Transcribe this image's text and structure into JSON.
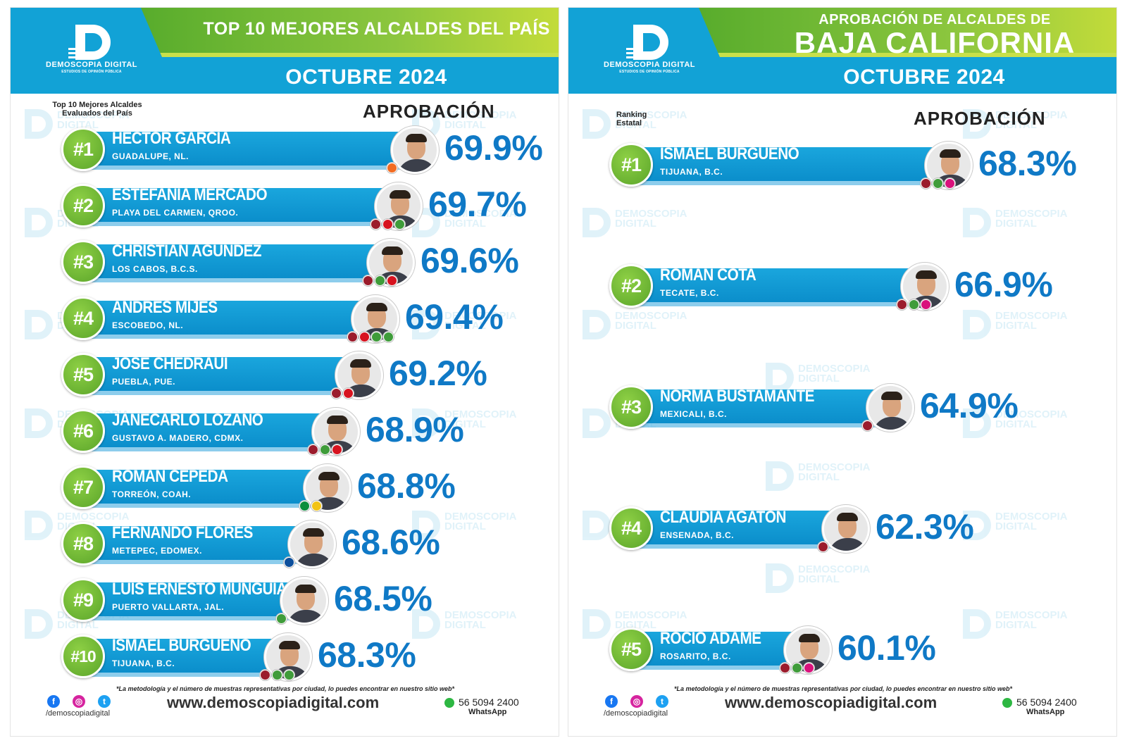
{
  "brand": {
    "logo_name": "DEMOSCOPIA DIGITAL",
    "logo_sub": "ESTUDIOS DE OPINIÓN PÚBLICA",
    "colors": {
      "blue": "#12a2d6",
      "green": "#5ba52a",
      "pct": "#0f79c6",
      "morena": "#9b1c2c",
      "pt": "#d7131f",
      "pvem": "#3f9c3a",
      "pan": "#0d4f9c",
      "pri": "#0b8e3c",
      "mc": "#f26b21"
    }
  },
  "left": {
    "title": "TOP 10 MEJORES ALCALDES DEL PAÍS",
    "date": "OCTUBRE 2024",
    "sub_label": "Top 10 Mejores Alcaldes Evaluados del País",
    "column_label": "APROBACIÓN",
    "rows": [
      {
        "rank": "#1",
        "name": "HÉCTOR GARCÍA",
        "place": "GUADALUPE, NL.",
        "pct": "69.9%",
        "parties": [
          "mc"
        ]
      },
      {
        "rank": "#2",
        "name": "ESTEFANÍA MERCADO",
        "place": "PLAYA DEL CARMEN, QROO.",
        "pct": "69.7%",
        "parties": [
          "morena",
          "pt",
          "pvem"
        ]
      },
      {
        "rank": "#3",
        "name": "CHRISTIAN AGÚNDEZ",
        "place": "LOS CABOS, B.C.S.",
        "pct": "69.6%",
        "parties": [
          "morena",
          "pvem",
          "pt"
        ]
      },
      {
        "rank": "#4",
        "name": "ANDRÉS MIJES",
        "place": "ESCOBEDO, NL.",
        "pct": "69.4%",
        "parties": [
          "morena",
          "pt",
          "pvem",
          "pvem"
        ]
      },
      {
        "rank": "#5",
        "name": "JOSÉ CHEDRAUI",
        "place": "PUEBLA, PUE.",
        "pct": "69.2%",
        "parties": [
          "morena",
          "pt"
        ]
      },
      {
        "rank": "#6",
        "name": "JANECARLO LOZANO",
        "place": "GUSTAVO A. MADERO, CDMX.",
        "pct": "68.9%",
        "parties": [
          "morena",
          "pvem",
          "pt"
        ]
      },
      {
        "rank": "#7",
        "name": "ROMÁN CEPEDA",
        "place": "TORREÓN, COAH.",
        "pct": "68.8%",
        "parties": [
          "pri",
          "prd"
        ]
      },
      {
        "rank": "#8",
        "name": "FERNANDO FLORES",
        "place": "METEPEC, EDOMEX.",
        "pct": "68.6%",
        "parties": [
          "pan"
        ]
      },
      {
        "rank": "#9",
        "name": "LUIS ERNESTO MUNGUÍA",
        "place": "PUERTO VALLARTA, JAL.",
        "pct": "68.5%",
        "parties": [
          "pvem"
        ]
      },
      {
        "rank": "#10",
        "name": "ISMAEL BURGUEÑO",
        "place": "TIJUANA, B.C.",
        "pct": "68.3%",
        "parties": [
          "morena",
          "pvem",
          "pvem"
        ]
      }
    ]
  },
  "right": {
    "kicker": "APROBACIÓN DE ALCALDES DE",
    "title": "BAJA CALIFORNIA",
    "date": "OCTUBRE 2024",
    "sub_label": "Ranking Estatal",
    "column_label": "APROBACIÓN",
    "rows": [
      {
        "rank": "#1",
        "name": "ISMAEL BURGUEÑO",
        "place": "TIJUANA, B.C.",
        "pct": "68.3%",
        "parties": [
          "morena",
          "pvem",
          "fxm"
        ]
      },
      {
        "rank": "#2",
        "name": "ROMAN COTA",
        "place": "TECATE, B.C.",
        "pct": "66.9%",
        "parties": [
          "morena",
          "pvem",
          "fxm"
        ]
      },
      {
        "rank": "#3",
        "name": "NORMA BUSTAMANTE",
        "place": "MEXICALI, B.C.",
        "pct": "64.9%",
        "parties": [
          "morena"
        ]
      },
      {
        "rank": "#4",
        "name": "CLAUDIA AGATÓN",
        "place": "ENSENADA, B.C.",
        "pct": "62.3%",
        "parties": [
          "morena"
        ]
      },
      {
        "rank": "#5",
        "name": "ROCIO ADAME",
        "place": "ROSARITO, B.C.",
        "pct": "60.1%",
        "parties": [
          "morena",
          "pvem",
          "fxm"
        ]
      }
    ]
  },
  "footer": {
    "note": "*La metodología y el número de muestras representativas por ciudad, lo puedes encontrar en nuestro sitio web*",
    "social_icons": [
      "facebook-icon",
      "instagram-icon",
      "twitter-icon"
    ],
    "handle": "/demoscopiadigital",
    "website": "www.demoscopiadigital.com",
    "whatsapp_number": "56 5094 2400",
    "whatsapp_label": "WhatsApp"
  },
  "chart_data": [
    {
      "type": "bar",
      "title": "TOP 10 MEJORES ALCALDES DEL PAÍS",
      "subtitle": "OCTUBRE 2024",
      "categories": [
        "HÉCTOR GARCÍA",
        "ESTEFANÍA MERCADO",
        "CHRISTIAN AGÚNDEZ",
        "ANDRÉS MIJES",
        "JOSÉ CHEDRAUI",
        "JANECARLO LOZANO",
        "ROMÁN CEPEDA",
        "FERNANDO FLORES",
        "LUIS ERNESTO MUNGUÍA",
        "ISMAEL BURGUEÑO"
      ],
      "values": [
        69.9,
        69.7,
        69.6,
        69.4,
        69.2,
        68.9,
        68.8,
        68.6,
        68.5,
        68.3
      ],
      "ylabel": "APROBACIÓN"
    },
    {
      "type": "bar",
      "title": "BAJA CALIFORNIA",
      "subtitle": "OCTUBRE 2024",
      "categories": [
        "ISMAEL BURGUEÑO",
        "ROMAN COTA",
        "NORMA BUSTAMANTE",
        "CLAUDIA AGATÓN",
        "ROCIO ADAME"
      ],
      "values": [
        68.3,
        66.9,
        64.9,
        62.3,
        60.1
      ],
      "ylabel": "APROBACIÓN"
    }
  ]
}
